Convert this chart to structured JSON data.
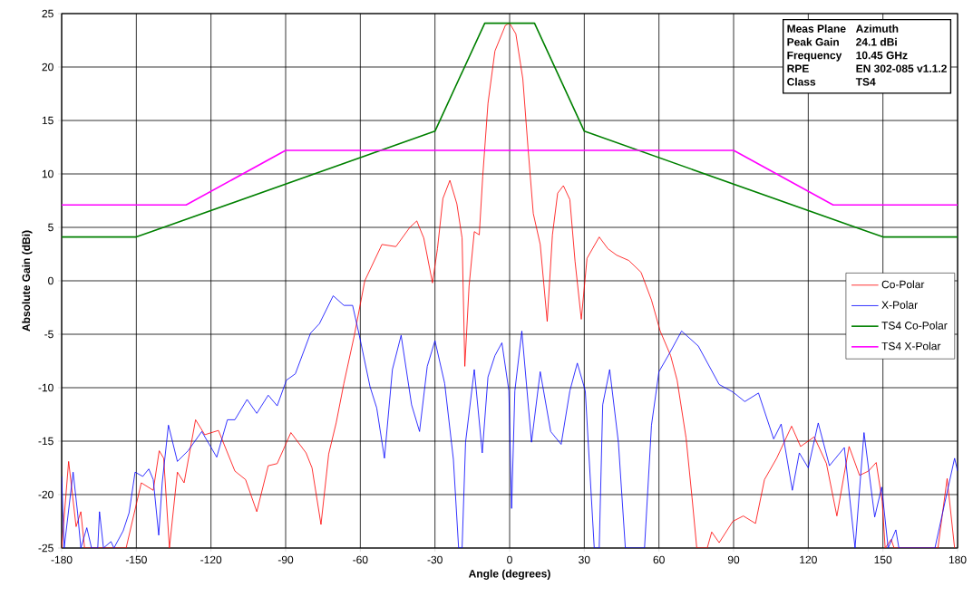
{
  "chart_data": {
    "type": "line",
    "xlabel": "Angle (degrees)",
    "ylabel": "Absolute Gain (dBi)",
    "xlim": [
      -180,
      180
    ],
    "ylim": [
      -25,
      25
    ],
    "xticks": [
      -180,
      -150,
      -120,
      -90,
      -60,
      -30,
      0,
      30,
      60,
      90,
      120,
      150,
      180
    ],
    "yticks": [
      -25,
      -20,
      -15,
      -10,
      -5,
      0,
      5,
      10,
      15,
      20,
      25
    ],
    "grid": true,
    "legend": "right",
    "annotations": [
      "Meas Plane",
      "Azimuth",
      "Peak Gain",
      "24.1 dBi",
      "Frequency",
      "10.45 GHz",
      "RPE",
      "EN 302-085 v1.1.2",
      "Class",
      "TS4"
    ],
    "series": [
      {
        "name": "Co-Polar",
        "color": "#ff0000",
        "x": [
          -180,
          -177.2,
          -174.2,
          -172.3,
          -170.8,
          -154.1,
          -148,
          -143.2,
          -140.8,
          -139,
          -136.7,
          -133.5,
          -130.8,
          -126.2,
          -122.5,
          -117,
          -110.4,
          -106.1,
          -101.6,
          -97,
          -93.4,
          -87.9,
          -81.8,
          -79.4,
          -75.8,
          -72.7,
          -69.7,
          -66.6,
          -62.4,
          -58.2,
          -51.3,
          -45.7,
          -40.1,
          -37.3,
          -34.5,
          -31,
          -29,
          -26.8,
          -24,
          -21.2,
          -19.1,
          -18,
          -16.3,
          -14.2,
          -12.2,
          -10.8,
          -8.7,
          -5.9,
          -1.7,
          0,
          2.5,
          5.3,
          7.4,
          9.5,
          12.3,
          15.1,
          17.2,
          19.3,
          21.6,
          24.2,
          26.3,
          28.8,
          31.1,
          36,
          39.5,
          43,
          47.9,
          52.8,
          57,
          60.5,
          64.7,
          67.3,
          70.9,
          73.3,
          75.2,
          79.4,
          81.2,
          84.2,
          89.7,
          93.9,
          98.8,
          102.4,
          107.3,
          113.3,
          116.9,
          122.4,
          127.3,
          131.5,
          136.4,
          140.6,
          144.2,
          147.3,
          149.7,
          150.9,
          153.3,
          154.5,
          172.1,
          175.8,
          178.8
        ],
        "values": [
          -25,
          -16.9,
          -23.0,
          -21.6,
          -25,
          -25,
          -18.9,
          -19.6,
          -15.9,
          -16.6,
          -25,
          -17.9,
          -18.9,
          -13.0,
          -14.4,
          -14.0,
          -17.8,
          -18.6,
          -21.6,
          -17.3,
          -17.1,
          -14.2,
          -16.1,
          -17.5,
          -22.8,
          -16.2,
          -13.3,
          -9.6,
          -5.1,
          0,
          3.4,
          3.2,
          5.0,
          5.6,
          4.0,
          -0.2,
          3.0,
          7.7,
          9.4,
          7.2,
          4.0,
          -8.0,
          -0.5,
          4.6,
          4.3,
          9.8,
          16.6,
          21.5,
          23.9,
          24.1,
          23.1,
          18.9,
          12.4,
          6.3,
          3.4,
          -3.8,
          4.3,
          8.2,
          8.9,
          7.6,
          1.8,
          -3.6,
          2.1,
          4.1,
          3.0,
          2.4,
          1.9,
          0.8,
          -1.8,
          -4.7,
          -7.0,
          -9.3,
          -14.7,
          -20.3,
          -25,
          -25,
          -23.5,
          -24.5,
          -22.5,
          -22.0,
          -22.7,
          -18.6,
          -16.6,
          -13.6,
          -15.5,
          -14.6,
          -17.1,
          -22.0,
          -15.5,
          -18.2,
          -17.8,
          -17.0,
          -20.6,
          -25,
          -24.2,
          -25,
          -25,
          -18.5,
          -25
        ]
      },
      {
        "name": "X-Polar",
        "color": "#0000ff",
        "x": [
          -180,
          -179,
          -175.4,
          -173.6,
          -172.3,
          -169.9,
          -168,
          -165.5,
          -164.8,
          -163.2,
          -160.2,
          -159,
          -155.3,
          -152.9,
          -150.5,
          -147.4,
          -145,
          -143.2,
          -141,
          -139.6,
          -137.1,
          -133.5,
          -129.2,
          -123.7,
          -117.7,
          -113.4,
          -110.4,
          -105.5,
          -101.6,
          -97,
          -93.4,
          -89.7,
          -86.1,
          -80,
          -76.4,
          -70.9,
          -66.6,
          -63.1,
          -60.4,
          -56.1,
          -53.4,
          -50.3,
          -47.1,
          -43.6,
          -39.4,
          -36.2,
          -33.1,
          -30,
          -26.1,
          -22.6,
          -20.5,
          -19.1,
          -17.7,
          -14.2,
          -11,
          -8.7,
          -5.9,
          -3.1,
          -0.3,
          0.8,
          2.1,
          4.9,
          8.8,
          12.3,
          16.5,
          20.7,
          24.2,
          27.2,
          30.4,
          34,
          36,
          37.4,
          40.2,
          43.7,
          46.5,
          54.2,
          57,
          60,
          64.2,
          69.1,
          75.8,
          84.2,
          89.7,
          94.5,
          100,
          106.1,
          109.1,
          113.6,
          116.4,
          120,
          124,
          128.5,
          134.5,
          138.8,
          142.4,
          146.7,
          149.5,
          152.1,
          155.2,
          156.4,
          170.9,
          173.9,
          178.8,
          180
        ],
        "values": [
          -18.3,
          -25,
          -17.9,
          -21.7,
          -25,
          -23.1,
          -25,
          -25,
          -21.6,
          -25,
          -24.4,
          -25,
          -23.4,
          -21.7,
          -17.9,
          -18.3,
          -17.6,
          -18.6,
          -23.8,
          -18.9,
          -13.5,
          -16.9,
          -15.9,
          -14.1,
          -16.5,
          -13.0,
          -13.0,
          -11.1,
          -12.4,
          -10.7,
          -11.7,
          -9.3,
          -8.7,
          -4.9,
          -4.0,
          -1.4,
          -2.3,
          -2.3,
          -5.1,
          -9.9,
          -11.9,
          -16.6,
          -8.3,
          -5.1,
          -11.6,
          -14.1,
          -8.0,
          -5.6,
          -9.6,
          -16.7,
          -25,
          -25,
          -15.1,
          -8.3,
          -16.1,
          -9.0,
          -7.0,
          -5.8,
          -10.3,
          -21.3,
          -10.3,
          -4.7,
          -15.1,
          -8.5,
          -14.1,
          -15.3,
          -10.3,
          -7.7,
          -10.3,
          -25,
          -25,
          -11.6,
          -8.3,
          -15.1,
          -25,
          -25,
          -13.5,
          -8.5,
          -6.8,
          -4.7,
          -6.1,
          -9.7,
          -10.4,
          -11.3,
          -10.5,
          -14.8,
          -13.4,
          -19.6,
          -16.1,
          -17.5,
          -13.3,
          -17.3,
          -15.6,
          -25,
          -14.2,
          -22.1,
          -19.3,
          -25,
          -23.3,
          -25,
          -25,
          -21.8,
          -16.6,
          -17.8
        ]
      },
      {
        "name": "TS4 Co-Polar",
        "color": "#008000",
        "x": [
          -180,
          -150,
          -30,
          -10,
          10,
          30,
          150,
          180
        ],
        "values": [
          4.1,
          4.1,
          14.0,
          24.1,
          24.1,
          14.0,
          4.1,
          4.1
        ]
      },
      {
        "name": "TS4 X-Polar",
        "color": "#ff00ff",
        "x": [
          -180,
          -130,
          -90,
          90,
          130,
          180
        ],
        "values": [
          7.1,
          7.1,
          12.2,
          12.2,
          7.1,
          7.1
        ]
      }
    ]
  }
}
